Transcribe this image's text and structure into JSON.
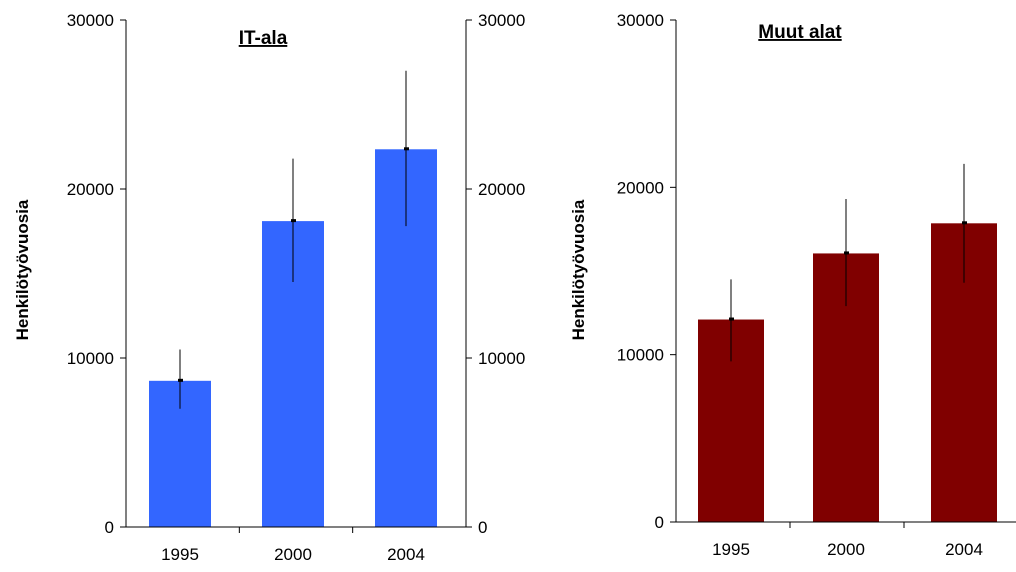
{
  "chart_data": [
    {
      "type": "bar",
      "title": "IT-ala",
      "ylabel": "Henkilötyövuosia",
      "xlabel": "",
      "categories": [
        "1995",
        "2000",
        "2004"
      ],
      "values": [
        8650,
        18100,
        22350
      ],
      "error_low": [
        7000,
        14500,
        17800
      ],
      "error_high": [
        10500,
        21800,
        27000
      ],
      "ylim": [
        0,
        30000
      ],
      "yticks": [
        "0",
        "10000",
        "20000",
        "30000"
      ],
      "secondary_yticks": [
        "0",
        "10000",
        "20000",
        "30000"
      ],
      "bar_color": "#3366FF",
      "grid": false
    },
    {
      "type": "bar",
      "title": "Muut alat",
      "ylabel": "Henkilötyövuosia",
      "xlabel": "",
      "categories": [
        "1995",
        "2000",
        "2004"
      ],
      "values": [
        12100,
        16050,
        17850
      ],
      "error_low": [
        9600,
        12900,
        14300
      ],
      "error_high": [
        14500,
        19300,
        21400
      ],
      "ylim": [
        0,
        30000
      ],
      "yticks": [
        "0",
        "10000",
        "20000",
        "30000"
      ],
      "bar_color": "#800000",
      "grid": false
    }
  ]
}
